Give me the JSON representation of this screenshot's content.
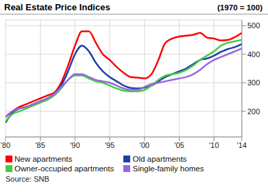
{
  "chart_data": {
    "type": "line",
    "title": "Real Estate Price Indices",
    "subtitle": "(1970 = 100)",
    "source": "Source: SNB",
    "x": [
      1980,
      1981,
      1982,
      1983,
      1984,
      1985,
      1986,
      1987,
      1988,
      1989,
      1990,
      1991,
      1992,
      1993,
      1994,
      1995,
      1996,
      1997,
      1998,
      1999,
      2000,
      2001,
      2002,
      2003,
      2004,
      2005,
      2006,
      2007,
      2008,
      2009,
      2010,
      2011,
      2012,
      2013,
      2014
    ],
    "series": [
      {
        "name": "New apartments",
        "color": "#ff0000",
        "values": [
          180,
          200,
          215,
          225,
          235,
          245,
          255,
          265,
          300,
          360,
          430,
          480,
          480,
          440,
          400,
          380,
          355,
          335,
          320,
          318,
          315,
          330,
          380,
          440,
          455,
          462,
          465,
          468,
          475,
          458,
          455,
          448,
          450,
          460,
          475
        ]
      },
      {
        "name": "Old apartments",
        "color": "#1f3fa8",
        "values": [
          160,
          195,
          210,
          215,
          225,
          235,
          245,
          260,
          290,
          340,
          400,
          430,
          410,
          370,
          340,
          320,
          305,
          290,
          282,
          280,
          283,
          290,
          305,
          320,
          330,
          340,
          350,
          365,
          380,
          385,
          395,
          408,
          418,
          425,
          435
        ]
      },
      {
        "name": "Owner-occupied apartments",
        "color": "#44cc44",
        "values": [
          165,
          190,
          200,
          210,
          220,
          230,
          240,
          255,
          280,
          310,
          325,
          325,
          315,
          305,
          300,
          290,
          280,
          272,
          270,
          270,
          275,
          290,
          310,
          325,
          330,
          335,
          345,
          360,
          380,
          395,
          410,
          430,
          440,
          445,
          450
        ]
      },
      {
        "name": "Single-family homes",
        "color": "#9966dd",
        "values": [
          180,
          200,
          210,
          215,
          225,
          235,
          245,
          260,
          285,
          310,
          330,
          330,
          320,
          310,
          305,
          300,
          290,
          280,
          275,
          275,
          285,
          295,
          300,
          305,
          310,
          315,
          320,
          330,
          345,
          365,
          380,
          390,
          400,
          410,
          420
        ]
      }
    ],
    "xlim": [
      1980,
      2014
    ],
    "xticks": [
      {
        "value": 1980,
        "label": "'80"
      },
      {
        "value": 1985,
        "label": "'85"
      },
      {
        "value": 1990,
        "label": "'90"
      },
      {
        "value": 1995,
        "label": "'95"
      },
      {
        "value": 2000,
        "label": "'00"
      },
      {
        "value": 2005,
        "label": "'05"
      },
      {
        "value": 2010,
        "label": "'10"
      },
      {
        "value": 2014,
        "label": "'14"
      }
    ],
    "ylim": [
      110,
      520
    ],
    "yticks": [
      200,
      300,
      400,
      500
    ],
    "grid": true,
    "legend": "bottom"
  }
}
